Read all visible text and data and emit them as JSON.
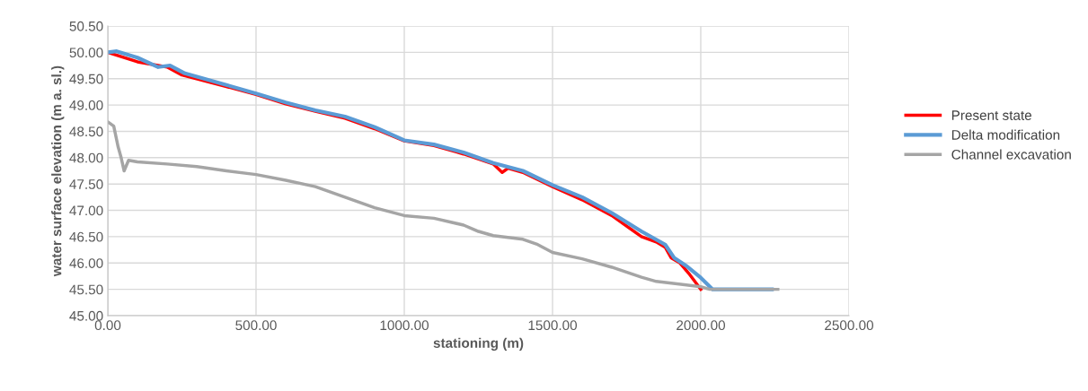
{
  "chart_data": {
    "type": "line",
    "xlabel": "stationing (m)",
    "ylabel": "water surface elevation (m a. sl.)",
    "xlim": [
      0,
      2500
    ],
    "xticks": [
      {
        "value": 0,
        "label": "0.00"
      },
      {
        "value": 500,
        "label": "500.00"
      },
      {
        "value": 1000,
        "label": "1000.00"
      },
      {
        "value": 1500,
        "label": "1500.00"
      },
      {
        "value": 2000,
        "label": "2000.00"
      },
      {
        "value": 2500,
        "label": "2500.00"
      }
    ],
    "ylim": [
      45,
      50.5
    ],
    "yticks": [
      {
        "value": 45,
        "label": "45.00"
      },
      {
        "value": 45.5,
        "label": "45.50"
      },
      {
        "value": 46,
        "label": "46.00"
      },
      {
        "value": 46.5,
        "label": "46.50"
      },
      {
        "value": 47,
        "label": "47.00"
      },
      {
        "value": 47.5,
        "label": "47.50"
      },
      {
        "value": 48,
        "label": "48.00"
      },
      {
        "value": 48.5,
        "label": "48.50"
      },
      {
        "value": 49,
        "label": "49.00"
      },
      {
        "value": 49.5,
        "label": "49.50"
      },
      {
        "value": 50,
        "label": "50.00"
      },
      {
        "value": 50.5,
        "label": "50.50"
      }
    ],
    "grid": true,
    "legend": "right",
    "marker": "none",
    "line_style": "solid",
    "series": [
      {
        "name": "Present state",
        "color": "#ff0000",
        "x": [
          0,
          100,
          200,
          250,
          400,
          500,
          600,
          700,
          800,
          900,
          1000,
          1100,
          1200,
          1300,
          1330,
          1350,
          1400,
          1500,
          1600,
          1700,
          1800,
          1850,
          1880,
          1900,
          1930,
          1960,
          2000
        ],
        "values": [
          50.0,
          49.82,
          49.72,
          49.57,
          49.35,
          49.2,
          49.02,
          48.88,
          48.75,
          48.55,
          48.32,
          48.23,
          48.07,
          47.88,
          47.72,
          47.8,
          47.72,
          47.45,
          47.2,
          46.9,
          46.5,
          46.4,
          46.3,
          46.1,
          46.0,
          45.8,
          45.5
        ]
      },
      {
        "name": "Delta modification",
        "color": "#5b9bd5",
        "x": [
          0,
          30,
          100,
          170,
          210,
          260,
          400,
          500,
          600,
          700,
          800,
          900,
          1000,
          1100,
          1200,
          1300,
          1400,
          1500,
          1600,
          1700,
          1800,
          1880,
          1910,
          1950,
          2000,
          2040,
          2240
        ],
        "values": [
          50.0,
          50.02,
          49.9,
          49.72,
          49.75,
          49.6,
          49.38,
          49.22,
          49.05,
          48.9,
          48.78,
          48.58,
          48.33,
          48.25,
          48.1,
          47.9,
          47.75,
          47.48,
          47.25,
          46.95,
          46.6,
          46.35,
          46.1,
          45.95,
          45.72,
          45.5,
          45.5
        ]
      },
      {
        "name": "Channel excavation",
        "color": "#a5a5a5",
        "x": [
          0,
          20,
          35,
          45,
          55,
          70,
          100,
          200,
          300,
          400,
          500,
          600,
          700,
          800,
          900,
          1000,
          1100,
          1200,
          1250,
          1300,
          1400,
          1450,
          1500,
          1600,
          1700,
          1800,
          1850,
          2000,
          2030,
          2260
        ],
        "values": [
          48.68,
          48.6,
          48.2,
          48.0,
          47.75,
          47.95,
          47.92,
          47.88,
          47.83,
          47.75,
          47.68,
          47.57,
          47.45,
          47.25,
          47.05,
          46.9,
          46.85,
          46.72,
          46.6,
          46.52,
          46.45,
          46.35,
          46.2,
          46.08,
          45.92,
          45.73,
          45.65,
          45.55,
          45.5,
          45.5
        ]
      }
    ]
  }
}
